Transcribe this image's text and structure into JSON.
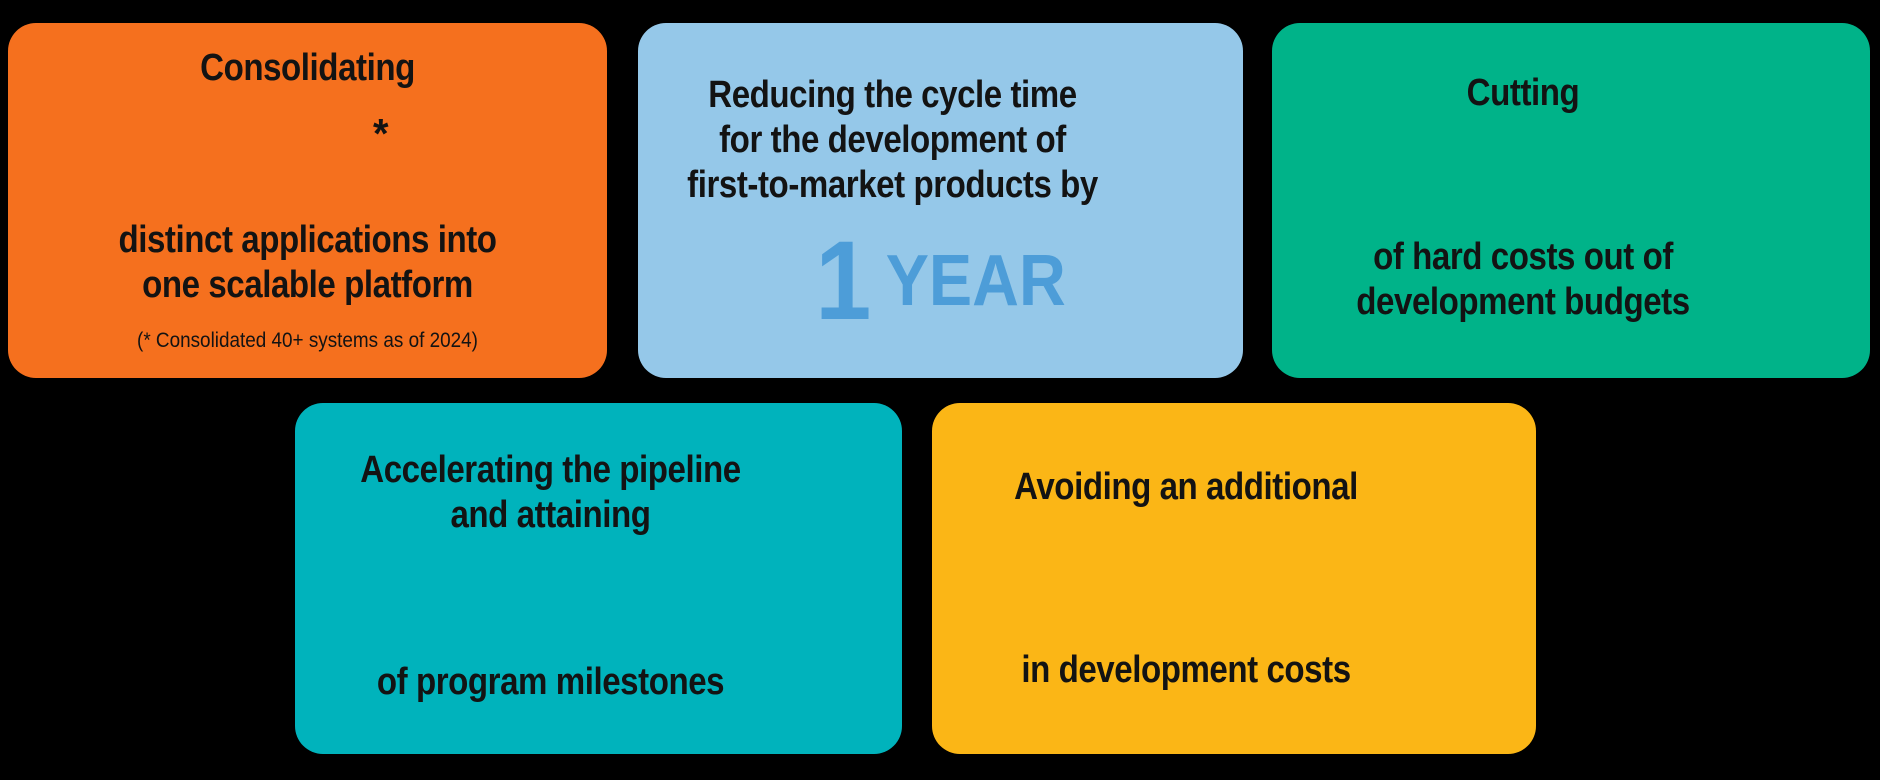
{
  "page": {
    "background_color": "#000000",
    "text_color": "#131313"
  },
  "cards": {
    "consolidating": {
      "color": "#F5701E",
      "title": "Consolidating",
      "footnote_marker": "*",
      "body_line1": "distinct applications into",
      "body_line2": "one scalable platform",
      "footnote": "(* Consolidated 40+ systems as of 2024)"
    },
    "cycle_time": {
      "color": "#95C8E9",
      "heading_line1": "Reducing the cycle time",
      "heading_line2": "for the development of",
      "heading_line3": "first-to-market products by",
      "metric_value": "1",
      "metric_unit": "YEAR",
      "metric_color": "#4D9DD8"
    },
    "hard_costs": {
      "color": "#00B389",
      "title": "Cutting",
      "body_line1": "of hard costs out of",
      "body_line2": "development budgets"
    },
    "pipeline": {
      "color": "#00B3BC",
      "heading_line1": "Accelerating the pipeline",
      "heading_line2": "and attaining",
      "body_line1": "of program milestones"
    },
    "cost_avoidance": {
      "color": "#FBB616",
      "heading_line1": "Avoiding an additional",
      "body_line1": "in development costs"
    }
  }
}
